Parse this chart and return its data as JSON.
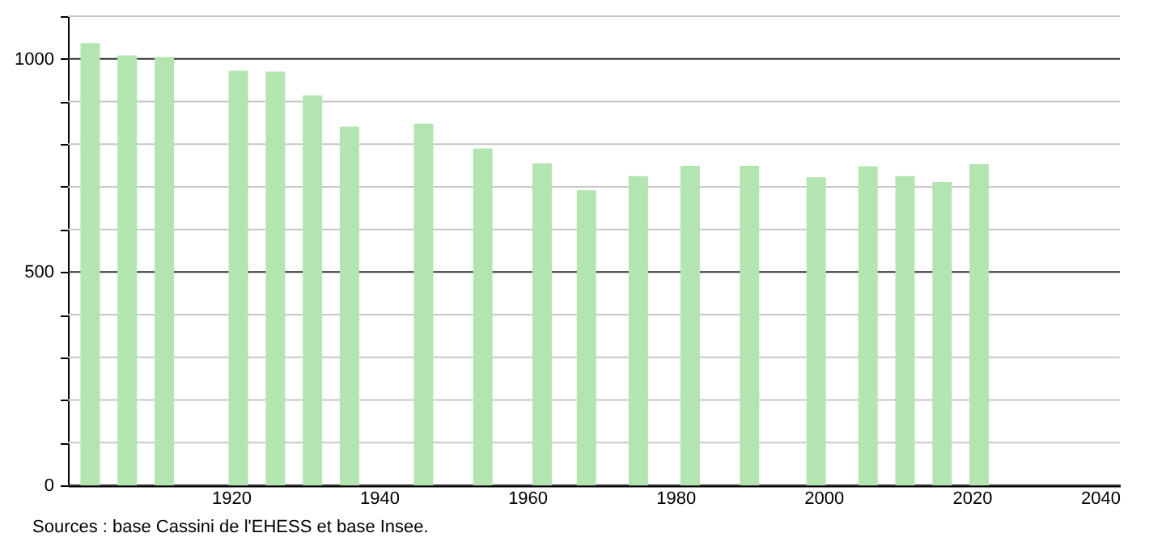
{
  "chart_data": {
    "type": "bar",
    "x": [
      1901,
      1906,
      1911,
      1921,
      1926,
      1931,
      1936,
      1946,
      1954,
      1962,
      1968,
      1975,
      1982,
      1990,
      1999,
      2006,
      2011,
      2016,
      2021
    ],
    "values": [
      1037,
      1008,
      1004,
      972,
      970,
      914,
      841,
      848,
      790,
      755,
      692,
      725,
      749,
      749,
      722,
      748,
      725,
      711,
      753
    ],
    "color": "#b3e5b0",
    "xlim": [
      1898,
      2040
    ],
    "xticks": [
      1920,
      1940,
      1960,
      1980,
      2000,
      2020,
      2040
    ],
    "ylim": [
      0,
      1100
    ],
    "yticks": [
      0,
      {
        "value": 100,
        "label": null
      },
      {
        "value": 200,
        "label": null
      },
      {
        "value": 300,
        "label": null
      },
      {
        "value": 400,
        "label": null
      },
      500,
      {
        "value": 600,
        "label": null
      },
      {
        "value": 700,
        "label": null
      },
      {
        "value": 800,
        "label": null
      },
      {
        "value": 900,
        "label": null
      },
      1000,
      {
        "value": 1100,
        "label": null
      }
    ],
    "grid": "y",
    "annotations": [
      "Sources : base Cassini de l'EHESS et base Insee."
    ]
  }
}
